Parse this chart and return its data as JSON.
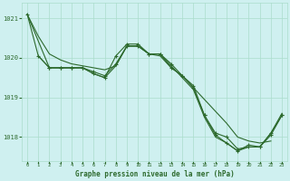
{
  "bg_color": "#cff0f0",
  "grid_color": "#aaddcc",
  "line_color": "#2d6a2d",
  "xlabel": "Graphe pression niveau de la mer (hPa)",
  "ylim": [
    1017.4,
    1021.4
  ],
  "xlim": [
    -0.5,
    23.5
  ],
  "yticks": [
    1018,
    1019,
    1020,
    1021
  ],
  "xticks": [
    0,
    1,
    2,
    3,
    4,
    5,
    6,
    7,
    8,
    9,
    10,
    11,
    12,
    13,
    14,
    15,
    16,
    17,
    18,
    19,
    20,
    21,
    22,
    23
  ],
  "lines": [
    {
      "x": [
        0,
        1,
        2,
        3,
        4,
        5,
        6,
        7,
        8,
        9,
        10,
        11,
        12,
        13,
        14,
        15,
        16,
        17,
        18,
        19,
        20,
        21,
        22
      ],
      "y": [
        1021.1,
        1020.55,
        1020.1,
        1019.95,
        1019.85,
        1019.8,
        1019.75,
        1019.7,
        1019.8,
        1020.3,
        1020.3,
        1020.1,
        1020.05,
        1019.75,
        1019.55,
        1019.25,
        1018.95,
        1018.65,
        1018.35,
        1018.0,
        1017.9,
        1017.85,
        1017.9
      ],
      "marker": false
    },
    {
      "x": [
        1,
        2,
        3,
        4,
        5,
        6,
        7,
        8,
        9,
        10,
        11,
        12,
        13,
        14,
        15,
        16,
        17,
        18,
        19,
        20,
        21,
        22,
        23
      ],
      "y": [
        1020.05,
        1019.75,
        1019.75,
        1019.75,
        1019.75,
        1019.6,
        1019.5,
        1020.05,
        1020.35,
        1020.35,
        1020.1,
        1020.1,
        1019.85,
        1019.55,
        1019.3,
        1018.55,
        1018.1,
        1018.0,
        1017.7,
        1017.75,
        1017.75,
        1018.05,
        1018.55
      ],
      "marker": true
    },
    {
      "x": [
        0,
        2,
        3,
        4,
        5,
        6,
        7,
        8,
        9,
        10,
        11,
        12,
        13,
        14,
        15,
        16,
        17,
        18,
        19,
        20,
        21,
        22,
        23
      ],
      "y": [
        1021.1,
        1019.75,
        1019.75,
        1019.75,
        1019.75,
        1019.65,
        1019.55,
        1019.85,
        1020.3,
        1020.3,
        1020.1,
        1020.1,
        1019.75,
        1019.55,
        1019.25,
        1018.55,
        1018.05,
        1017.85,
        1017.65,
        1017.8,
        1017.75,
        1018.1,
        1018.55
      ],
      "marker": true
    },
    {
      "x": [
        0,
        1,
        2,
        3,
        4,
        5,
        6,
        7,
        8,
        9,
        10,
        11,
        12,
        13,
        14,
        15,
        16,
        17,
        18,
        19,
        20,
        21,
        22,
        23
      ],
      "y": [
        1021.1,
        1020.05,
        1019.75,
        1019.75,
        1019.75,
        1019.75,
        1019.6,
        1019.5,
        1019.8,
        1020.3,
        1020.3,
        1020.1,
        1020.1,
        1019.8,
        1019.5,
        1019.2,
        1018.5,
        1018.0,
        1017.85,
        1017.65,
        1017.75,
        1017.75,
        1018.1,
        1018.6
      ],
      "marker": false
    }
  ]
}
